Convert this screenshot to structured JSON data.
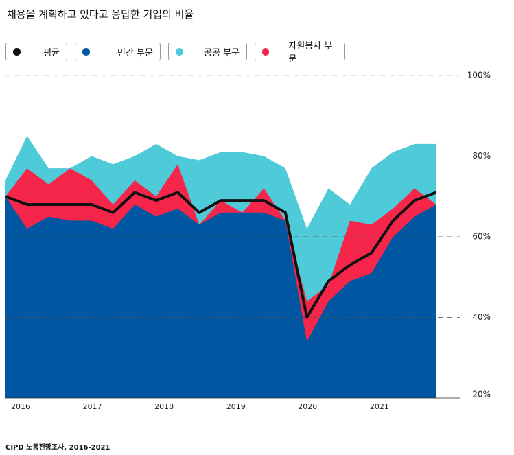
{
  "chart_data": {
    "type": "area",
    "title": "채용을 계획하고 있다고 응답한 기업의 비율",
    "source": "CIPD 노동전망조사, 2016-2021",
    "x": [
      2015.79,
      2016.09,
      2016.39,
      2016.69,
      2016.99,
      2017.29,
      2017.59,
      2017.89,
      2018.19,
      2018.49,
      2018.79,
      2019.09,
      2019.39,
      2019.69,
      2019.99,
      2020.29,
      2020.59,
      2020.89,
      2021.19,
      2021.49,
      2021.79
    ],
    "xlim": [
      2015.79,
      2022.12
    ],
    "xticks": [
      2016,
      2017,
      2018,
      2019,
      2020,
      2021
    ],
    "ylim": [
      20,
      100
    ],
    "yticks": [
      {
        "value": 20,
        "label": "20%"
      },
      {
        "value": 40,
        "label": "40%"
      },
      {
        "value": 60,
        "label": "60%"
      },
      {
        "value": 80,
        "label": "80%"
      },
      {
        "value": 100,
        "label": "100%"
      }
    ],
    "grid": true,
    "series": [
      {
        "name": "평균",
        "color": "#111111",
        "kind": "line",
        "values": [
          70,
          68,
          68,
          68,
          68,
          66,
          71,
          69,
          71,
          66,
          69,
          69,
          69,
          66,
          40,
          49,
          53,
          56,
          64,
          69,
          71
        ]
      },
      {
        "name": "민간 부문",
        "color": "#0056a0",
        "kind": "area",
        "values": [
          70,
          62,
          65,
          64,
          64,
          62,
          68,
          65,
          67,
          63,
          66,
          66,
          66,
          64,
          34,
          44,
          49,
          51,
          60,
          65,
          68
        ]
      },
      {
        "name": "공공 부문",
        "color": "#4fcad8",
        "kind": "area",
        "values": [
          74,
          85,
          77,
          77,
          80,
          78,
          80,
          83,
          80,
          79,
          81,
          81,
          80,
          77,
          62,
          72,
          68,
          77,
          81,
          83,
          83
        ]
      },
      {
        "name": "자원봉사 부문",
        "color": "#f5264a",
        "kind": "area",
        "values": [
          70,
          77,
          73,
          77,
          74,
          68,
          74,
          70,
          78,
          63,
          69,
          66,
          72,
          64,
          44,
          48,
          64,
          63,
          67,
          72,
          68
        ]
      }
    ]
  }
}
